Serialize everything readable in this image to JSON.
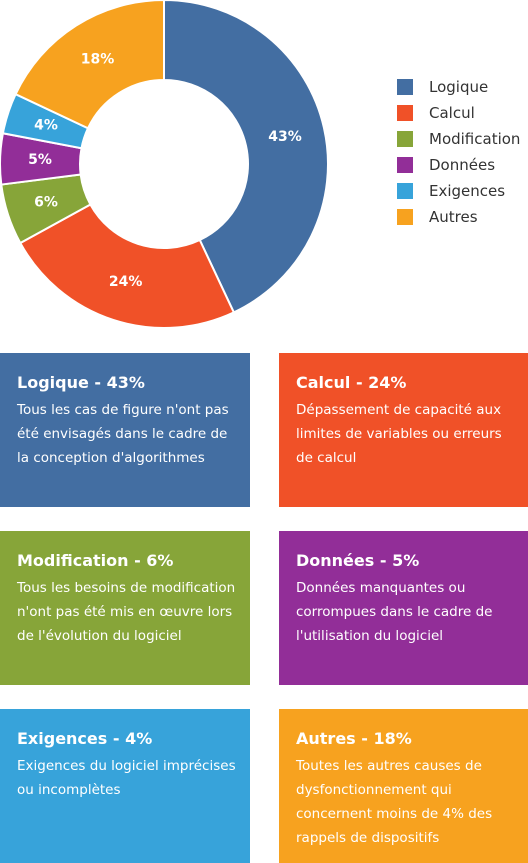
{
  "chart_data": {
    "type": "pie",
    "categories": [
      "Logique",
      "Calcul",
      "Modification",
      "Données",
      "Exigences",
      "Autres"
    ],
    "values": [
      43,
      24,
      6,
      5,
      4,
      18
    ],
    "labels": [
      "43%",
      "24%",
      "6%",
      "5%",
      "4%",
      "18%"
    ],
    "colors": [
      "#436ea2",
      "#f05128",
      "#87a539",
      "#922e98",
      "#37a3da",
      "#f7a21f"
    ],
    "donut": true,
    "legend_position": "right"
  },
  "cards": [
    {
      "title": "Logique - 43%",
      "desc": "Tous les cas de figure n'ont pas été envisagés dans le cadre de la conception d'algorithmes",
      "color": "#436ea2"
    },
    {
      "title": "Calcul - 24%",
      "desc": "Dépassement de capacité aux limites de variables ou erreurs de calcul",
      "color": "#f05128"
    },
    {
      "title": "Modification - 6%",
      "desc": "Tous les besoins de modification n'ont pas été mis en œuvre lors de l'évolution du logiciel",
      "color": "#87a539"
    },
    {
      "title": "Données - 5%",
      "desc": "Données manquantes ou corrompues dans le cadre de l'utilisation du logiciel",
      "color": "#922e98"
    },
    {
      "title": "Exigences - 4%",
      "desc": "Exigences du logiciel imprécises ou incomplètes",
      "color": "#37a3da"
    },
    {
      "title": "Autres - 18%",
      "desc": "Toutes les autres causes de dysfonctionnement qui concernent moins de 4% des rappels de dispositifs",
      "color": "#f7a21f"
    }
  ]
}
